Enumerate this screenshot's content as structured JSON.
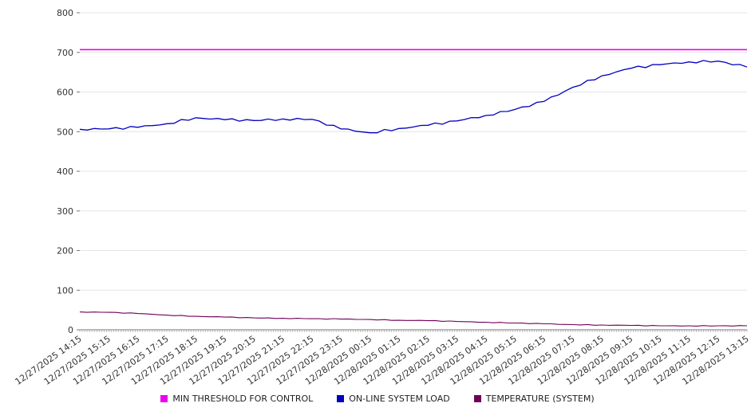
{
  "chart_data": {
    "type": "line",
    "title": "",
    "xlabel": "",
    "ylabel": "",
    "ylim": [
      0,
      800
    ],
    "ytick_interval": 100,
    "grid": true,
    "legend_position": "bottom",
    "categories": [
      "12/27/2025 14:15",
      "12/27/2025 15:15",
      "12/27/2025 16:15",
      "12/27/2025 17:15",
      "12/27/2025 18:15",
      "12/27/2025 19:15",
      "12/27/2025 20:15",
      "12/27/2025 21:15",
      "12/27/2025 22:15",
      "12/27/2025 23:15",
      "12/28/2025 00:15",
      "12/28/2025 01:15",
      "12/28/2025 02:15",
      "12/28/2025 03:15",
      "12/28/2025 04:15",
      "12/28/2025 05:15",
      "12/28/2025 06:15",
      "12/28/2025 07:15",
      "12/28/2025 08:15",
      "12/28/2025 09:15",
      "12/28/2025 10:15",
      "12/28/2025 11:15",
      "12/28/2025 12:15",
      "12/28/2025 13:15"
    ],
    "series": [
      {
        "name": "MIN THRESHOLD FOR CONTROL",
        "color": "#ee00ee",
        "constant": 707,
        "width": 1.6,
        "noise": 0
      },
      {
        "name": "ON-LINE SYSTEM LOAD",
        "color": "#0000c0",
        "width": 1.3,
        "noise": 1.5,
        "values": [
          506,
          507,
          511,
          520,
          535,
          530,
          528,
          532,
          531,
          507,
          497,
          508,
          516,
          527,
          541,
          556,
          576,
          612,
          641,
          660,
          669,
          676,
          678,
          663
        ]
      },
      {
        "name": "TEMPERATURE (SYSTEM)",
        "color": "#700058",
        "width": 1.1,
        "noise": 0.4,
        "values": [
          45,
          44,
          41,
          37,
          34,
          32,
          30,
          29,
          28,
          27,
          26,
          24,
          23,
          21,
          19,
          17,
          15,
          13,
          12,
          11,
          10,
          10,
          10,
          10
        ]
      }
    ]
  }
}
